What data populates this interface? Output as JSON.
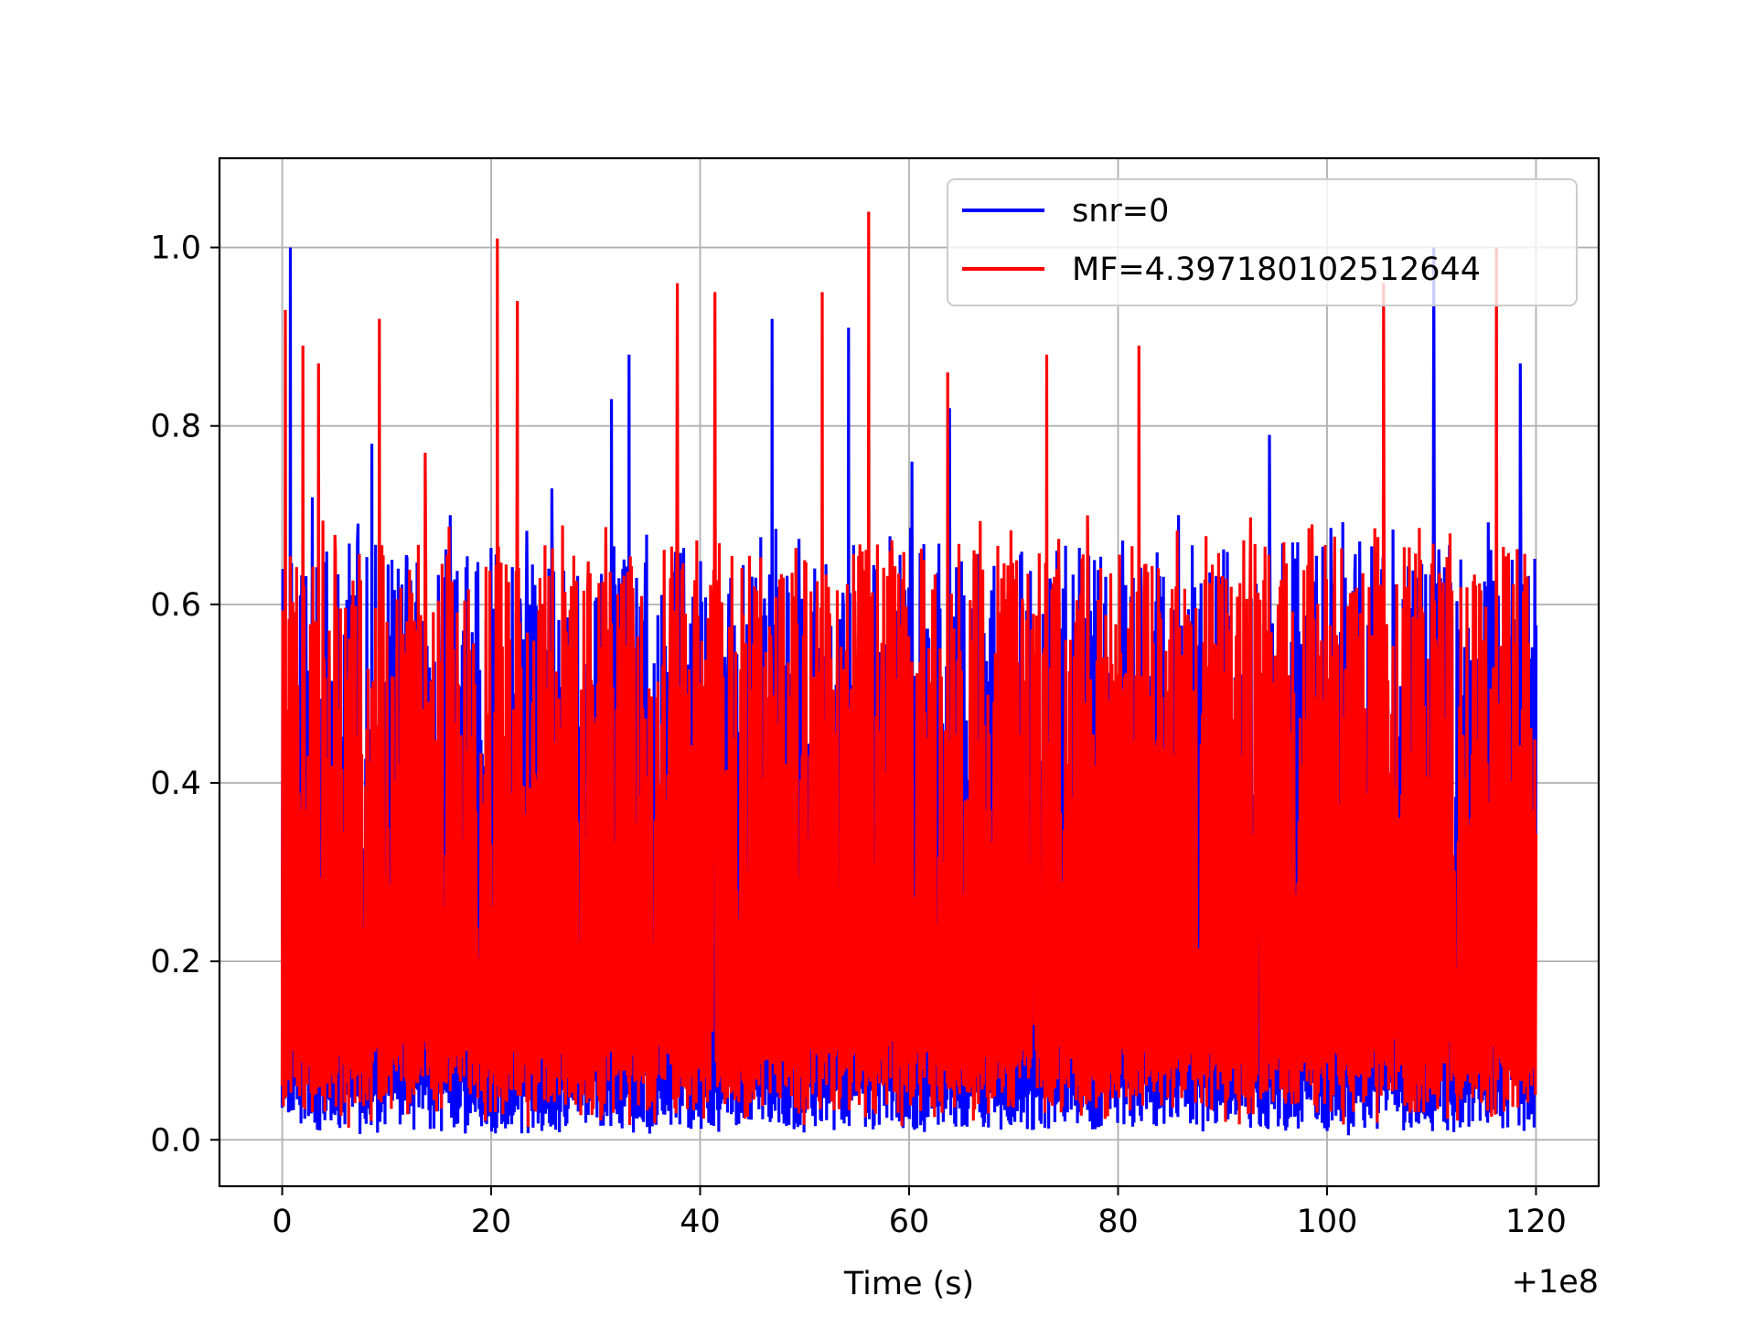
{
  "chart_data": {
    "type": "line",
    "title": "",
    "xlabel": "Time (s)",
    "ylabel": "",
    "x_offset_text": "+1e8",
    "xlim": [
      -6,
      126
    ],
    "ylim": [
      -0.052,
      1.1
    ],
    "xticks": [
      0,
      20,
      40,
      60,
      80,
      100,
      120
    ],
    "xtick_labels": [
      "0",
      "20",
      "40",
      "60",
      "80",
      "100",
      "120"
    ],
    "yticks": [
      0.0,
      0.2,
      0.4,
      0.6,
      0.8,
      1.0
    ],
    "ytick_labels": [
      "0.0",
      "0.2",
      "0.4",
      "0.6",
      "0.8",
      "1.0"
    ],
    "grid": true,
    "legend_position": "top-right",
    "series": [
      {
        "name": "snr=0",
        "color": "#0000ff",
        "x_range": [
          0,
          120
        ],
        "typical_low": 0.01,
        "typical_high": 0.45,
        "peaks": [
          {
            "x": 0.8,
            "y": 1.0
          },
          {
            "x": 2.9,
            "y": 0.72
          },
          {
            "x": 7.2,
            "y": 0.67
          },
          {
            "x": 8.6,
            "y": 0.78
          },
          {
            "x": 10.5,
            "y": 0.65
          },
          {
            "x": 16.1,
            "y": 0.7
          },
          {
            "x": 25.8,
            "y": 0.73
          },
          {
            "x": 31.5,
            "y": 0.83
          },
          {
            "x": 33.2,
            "y": 0.88
          },
          {
            "x": 46.9,
            "y": 0.92
          },
          {
            "x": 54.2,
            "y": 0.91
          },
          {
            "x": 60.3,
            "y": 0.76
          },
          {
            "x": 63.9,
            "y": 0.82
          },
          {
            "x": 85.8,
            "y": 0.7
          },
          {
            "x": 94.5,
            "y": 0.79
          },
          {
            "x": 110.2,
            "y": 1.0
          },
          {
            "x": 118.5,
            "y": 0.87
          }
        ]
      },
      {
        "name": "MF=4.397180102512644",
        "color": "#ff0000",
        "x_range": [
          0,
          120
        ],
        "typical_low": 0.04,
        "typical_high": 0.45,
        "peaks": [
          {
            "x": 0.3,
            "y": 0.93
          },
          {
            "x": 2.0,
            "y": 0.89
          },
          {
            "x": 3.5,
            "y": 0.87
          },
          {
            "x": 9.3,
            "y": 0.92
          },
          {
            "x": 13.7,
            "y": 0.77
          },
          {
            "x": 20.6,
            "y": 1.01
          },
          {
            "x": 22.5,
            "y": 0.94
          },
          {
            "x": 37.8,
            "y": 0.96
          },
          {
            "x": 41.4,
            "y": 0.95
          },
          {
            "x": 51.7,
            "y": 0.95
          },
          {
            "x": 56.1,
            "y": 1.04
          },
          {
            "x": 63.7,
            "y": 0.86
          },
          {
            "x": 73.2,
            "y": 0.88
          },
          {
            "x": 82.0,
            "y": 0.89
          },
          {
            "x": 105.4,
            "y": 0.96
          },
          {
            "x": 116.2,
            "y": 1.0
          }
        ]
      }
    ]
  }
}
